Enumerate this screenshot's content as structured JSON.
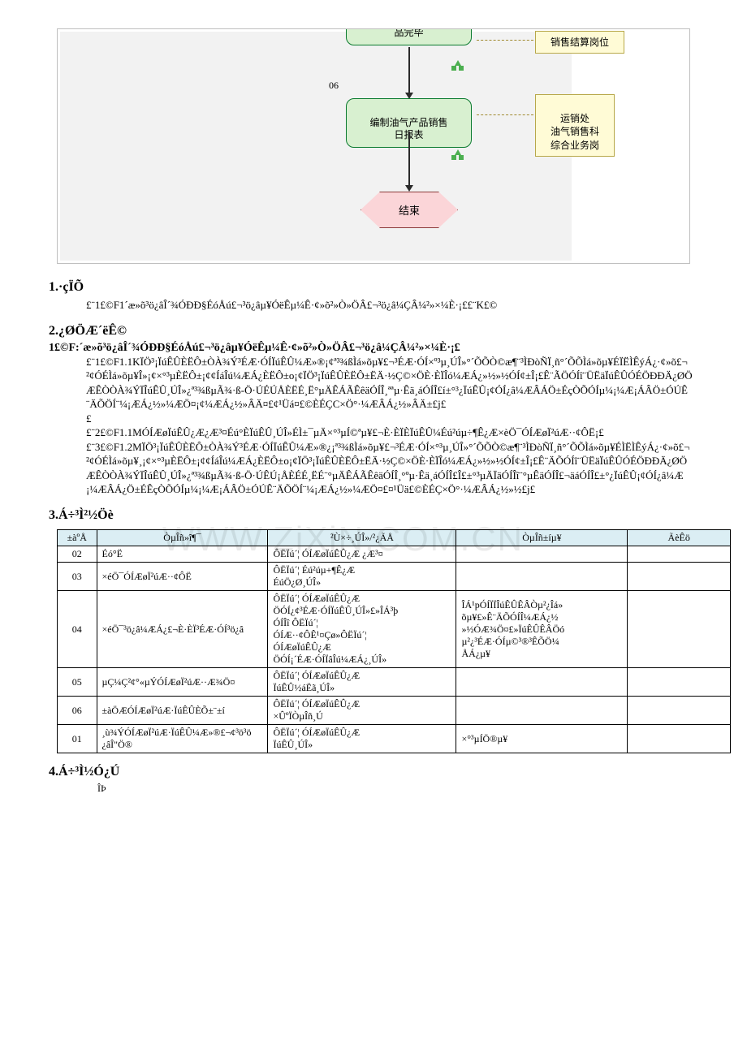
{
  "flow": {
    "top_box": "品完毕",
    "step06": "06",
    "mid_box": "编制油气产品销售\n日报表",
    "end_box": "结束",
    "annot1": "销售结算岗位",
    "annot2": "运销处\n油气销售科\n综合业务岗"
  },
  "sect1": {
    "title": "1.·çÏÕ",
    "body": "£¨1£©F1´æ»õ³ö¿âÎ´¾­ÓÐÐ§ÉóÅú£¬³ö¿âµ¥ÓëÊµ¼Ê·¢»õ²»Ò»ÖÂ£¬³ö¿â¼ÇÂ¼²»×¼È·¡££¨K£©"
  },
  "sect2": {
    "title": "2.¿ØÖÆ´ëÊ©",
    "sub": "1£©F:´æ»õ³ö¿âÎ´¾­ÓÐÐ§ÉóÅú£¬³ö¿âµ¥ÓëÊµ¼Ê·¢»õ²»Ò»ÖÂ£¬³ö¿â¼ÇÂ¼²»×¼È·¡£",
    "body1": "£¨1£©F1.1KÏÖ³¡ÏúÊÛÈËÔ±ÒÀ¾Ý³ÉÆ·ÓÍÏúÊÛ¼Æ»®¡¢ª³¾ßÌá»õµ¥£¬³ÉÆ·ÓÍ×º³µ¸ÚÎ»°´ÕÕÒ©æ¶¨³ÌÐòÑÏ¸ñ°´ÕÕÌá»õµ¥ÉÏËÌÊýÁ¿·¢»õ£¬²¢ÓÉÌá»õµ¥Î»¡¢×°³µÈËÔ±¡¢¢ÍáÎú¼ÆÁ¿ÈËÔ±o¡¢ÏÖ³¡ÏúÊÛÈËÔ±ËÄ·½Ç©×ÖÈ·ÈÏÎó¼ÆÁ¿»½»½ÓÍ¢±Î¡£Ê¨­ÃÖÓÍî¨ÜËäÏúÊÛÓÉÖÐÐÄ¿ØÖÆÊÒÒÀ¾ÝÏÎúÊÛ¸ÚÎ»¿ª³¾ßµÃ¾·ß-Ö·ÚÉÚÅÈËÉ¸Ë°µÄÊÁÃÊêäÓÍÎ¸ªªµ·Êä¸áÓÍÎ£í±°³¿­ÏúÊÛ¡¢ÓÍ¿â¼ÆÂÁÖ±ÉçÒÕÓÍµ¼¡¼Æ¡ÁÂÖ±ÓÚÊ¨­ÄÕÖÍ¨¼¡ÆÁ¿½»¼ÆÖ¤¡¢¼ÆÁ¿½»ÂÄ¤£¢¹Üá¤£©ÈÉÇC×Ö°·¼ÆÂÁ¿½»ÂÄ±£j£",
    "body2": "£",
    "body2b": "£¨2£©F1.1MÓÍÆøÏúÊÛ¿Æ¿Æ³¤Éú°ÈÏúÊÛ¸ÚÎ»ÉÌ±¯µÄ×°³µÍ©ªµ¥£¬È·ÈÏÈÏúÊÛ¼Éú²úµ÷¶Ê¿Æ×èÖ¯­ÓÍÆøÏ²úÆ··¢ÔË¡£",
    "body3": "£¨3£©F1.2MÏÖ³¡ÏúÊÛÈËÔ±ÒÀ¾Ý³ÉÆ·ÓÍÏúÊÛ¼Æ»®¿¡ª³¾ßÌá»õµ¥£¬³ÉÆ·ÓÍ×°³µ¸ÚÎ»°´ÕÕÒ©æ¶¨³ÌÐòÑÏ¸ñ°´ÕÕÌá»õµ¥ÉÌËÌÊýÁ¿·¢»õ£¬²¢ÓÉÌá»õµ¥¸¡¢×°³µÈËÔ±¡¢¢ÍáÎú¼ÆÁ¿ÈËÔ±o¡¢ÏÖ³¡ÏúÊÛÈËÔ±ËÄ·½Ç©×ÖÈ·ÈÏÎó¼ÆÁ¿»½»½ÓÍ¢±Î¡£Ê¨­ÄÕÓÍî¨ÜËäÏúÊÛÓÉÖÐÐÄ¿ØÖÆÊÒÒÀ¾ÝÏÎúÊÛ¸ÚÎ»¿ª³¾ßµÃ¾·ß-Ö·ÚÊÚ¡ÅÈÉÉ¸ËÉ¨°µÄÊÁÃÊêäÓÍÎ¸°ºµ·Êä¸áÓÍÎ£­Î£±°³µÄ­ÏäÓÍÎî¨°µÊäÓÍÎ£¬äáÓÍÎ£±°¿­ÏúÊÛ¡¢ÓÍ¿â¼Æ¡¼ÆÂÁ¿Ö±ÉÊçÒÕÓÍµ¼¡¼Æ¡ÁÂÖ±ÓÚÊ¨­ÄÕÖÍ¨¼¡ÆÁ¿½»¼ÆÖ¤£¤¹Üä£©ÈÉÇ×Ö°·¼ÆÂÁ¿½»½£j£"
  },
  "sect3": {
    "title": "3.Á÷³Ì²½Öè"
  },
  "table": {
    "headers": [
      "±àºÅ",
      "ÒµÎñ»î¶¯",
      "²Ù×÷¸ÚÎ»/²¿ÃÅ",
      "ÒµÎñ±íµ¥",
      "ÃèÊö"
    ],
    "rows": [
      [
        "02",
        "Éó°Ë",
        "ÔËÏú´¦ ÓÍÆøÏúÊÛ¿Æ ¿Æ³¤",
        "",
        ""
      ],
      [
        "03",
        "×éÖ¯­ÓÍÆøÏ²úÆ··¢ÔË",
        "ÔËÏú´¦ Éú²úµ+¶Ê¿Æ\nÉúÖ¿Ø¸ÚÎ»",
        "",
        ""
      ],
      [
        "04",
        "×éÖ¯³ö¿â¼ÆÁ¿£¬È·ÈÏ³ÉÆ·ÓÍ³ö¿â",
        "ÔËÏú´¦ ÓÍÆøÏúÊÛ¿Æ\nÖ­ÓÍ¿¢³ÉÆ·ÓÍÏúÊÛ¸ÚÎ»£»ÎÁ³þ\nÓÍÎî  ÔËÏú´¦\nÓÍÆ··¢ÔÊ¹¤Çø»ÔËÏú´¦\nÓÍÆøÏúÊÛ¿Æ\nÖ­ÓÍ¡´ÉÆ·ÓÍÏâÎú¼ÆÁ¿¸ÚÎ»",
        "ÎÁ¹pÓÍÏÏÎúÊÛÊÂÒµ²¿Îá»\nõµ¥£»Ê¨­ÄÕÓÍÎ¼ÆÁ¿½\n»½ÓÆ¾Ö¤£»ÏúÊÛÊÂÖó\nµ²¿³ÉÆ·ÓÍµ©³®³ÊÕÖ¼\nÅÁ¿µ¥",
        ""
      ],
      [
        "05",
        "µÇ¼Ç²¢°«µÝÓÍÆøÏ²úÆ··Æ¾Ö¤",
        "ÔËÏú´¦ ÓÍÆøÏúÊÛ¿Æ\nÏúÊÛ½áËã¸ÚÎ»",
        "",
        ""
      ],
      [
        "06",
        "±àÖÆÓÍÆøÏ²úÆ·ÏúÊÛÈÕ±¨±í",
        "ÔËÏú´¦ ÓÍÆøÏúÊÛ¿Æ\n×ÛºÏÒµÎñ¸Ú",
        "",
        ""
      ],
      [
        "01",
        "¸ù¾ÝÓÍÆøÏ²úÆ·ÏúÊÛ¼Æ»®£¬¢³ö³ö\n¿âÎ\"Ö®",
        "ÔËÏú´¦ ÓÍÆøÏúÊÛ¿Æ\nÏúÊÛ¸ÚÎ»",
        "×°³µÍ­Ö®µ¥",
        ""
      ]
    ]
  },
  "sect4": {
    "title": "4.Á÷³Ì½Ó¿Ú",
    "note": "ÎÞ"
  },
  "watermark": "WWW.ZiXiN.COM.CN"
}
